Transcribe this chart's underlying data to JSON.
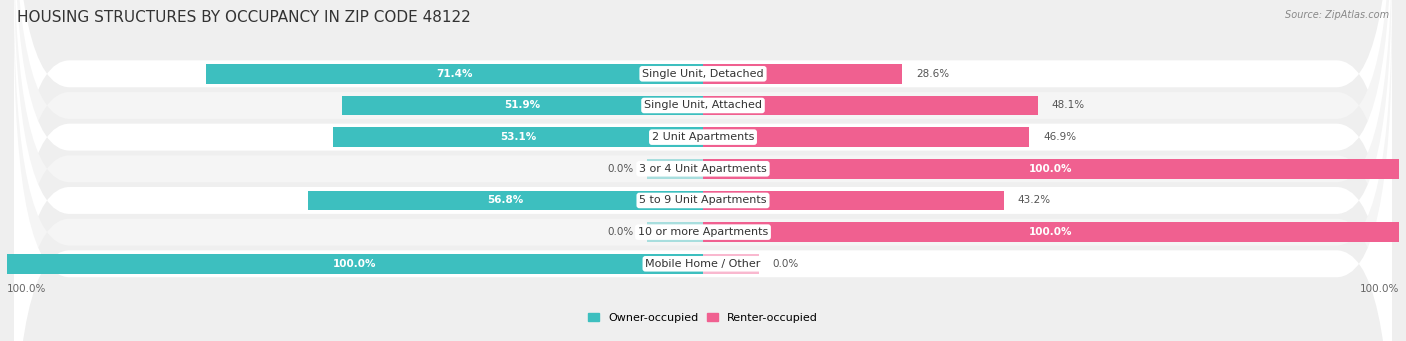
{
  "title": "HOUSING STRUCTURES BY OCCUPANCY IN ZIP CODE 48122",
  "source": "Source: ZipAtlas.com",
  "categories": [
    "Single Unit, Detached",
    "Single Unit, Attached",
    "2 Unit Apartments",
    "3 or 4 Unit Apartments",
    "5 to 9 Unit Apartments",
    "10 or more Apartments",
    "Mobile Home / Other"
  ],
  "owner_pct": [
    71.4,
    51.9,
    53.1,
    0.0,
    56.8,
    0.0,
    100.0
  ],
  "renter_pct": [
    28.6,
    48.1,
    46.9,
    100.0,
    43.2,
    100.0,
    0.0
  ],
  "owner_color": "#3DBFBF",
  "owner_color_light": "#A8DEDE",
  "renter_color": "#F06090",
  "renter_color_light": "#F9B8CF",
  "bg_color": "#EFEFEF",
  "title_fontsize": 11,
  "label_fontsize": 8,
  "pct_fontsize": 7.5,
  "tick_fontsize": 7.5,
  "bar_height": 0.62,
  "row_bg_even": "#FFFFFF",
  "row_bg_odd": "#F5F5F5"
}
